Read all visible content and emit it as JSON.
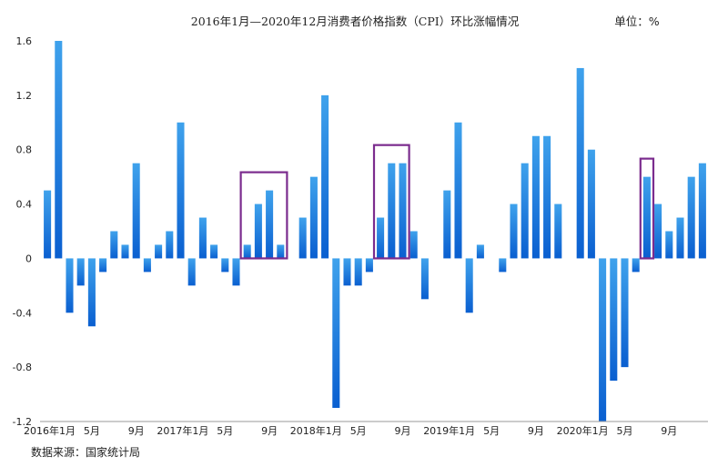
{
  "chart_data": {
    "type": "bar",
    "title": "2016年1月—2020年12月消费者价格指数（CPI）环比涨幅情况",
    "unit": "单位：%",
    "xlabel": "",
    "ylabel": "",
    "ylim": [
      -1.2,
      1.6
    ],
    "yticks": [
      "1.6",
      "1.2",
      "0.8",
      "0.4",
      "0",
      "-0.4",
      "-0.8",
      "-1.2"
    ],
    "categories": [
      "2016-01",
      "2016-02",
      "2016-03",
      "2016-04",
      "2016-05",
      "2016-06",
      "2016-07",
      "2016-08",
      "2016-09",
      "2016-10",
      "2016-11",
      "2016-12",
      "2017-01",
      "2017-02",
      "2017-03",
      "2017-04",
      "2017-05",
      "2017-06",
      "2017-07",
      "2017-08",
      "2017-09",
      "2017-10",
      "2017-11",
      "2017-12",
      "2018-01",
      "2018-02",
      "2018-03",
      "2018-04",
      "2018-05",
      "2018-06",
      "2018-07",
      "2018-08",
      "2018-09",
      "2018-10",
      "2018-11",
      "2018-12",
      "2019-01",
      "2019-02",
      "2019-03",
      "2019-04",
      "2019-05",
      "2019-06",
      "2019-07",
      "2019-08",
      "2019-09",
      "2019-10",
      "2019-11",
      "2019-12",
      "2020-01",
      "2020-02",
      "2020-03",
      "2020-04",
      "2020-05",
      "2020-06",
      "2020-07",
      "2020-08",
      "2020-09",
      "2020-10",
      "2020-11",
      "2020-12"
    ],
    "values": [
      0.5,
      1.6,
      -0.4,
      -0.2,
      -0.5,
      -0.1,
      0.2,
      0.1,
      0.7,
      -0.1,
      0.1,
      0.2,
      1.0,
      -0.2,
      0.3,
      0.1,
      -0.1,
      -0.2,
      0.1,
      0.4,
      0.5,
      0.1,
      0.0,
      0.3,
      0.6,
      1.2,
      -1.1,
      -0.2,
      -0.2,
      -0.1,
      0.3,
      0.7,
      0.7,
      0.2,
      -0.3,
      0.0,
      0.5,
      1.0,
      -0.4,
      0.1,
      0.0,
      -0.1,
      0.4,
      0.7,
      0.9,
      0.9,
      0.4,
      0.0,
      1.4,
      0.8,
      -1.2,
      -0.9,
      -0.8,
      -0.1,
      0.6,
      0.4,
      0.2,
      0.3,
      0.6,
      0.7
    ],
    "xtick_labels": [
      {
        "index": 0,
        "label": "2016年1月"
      },
      {
        "index": 4,
        "label": "5月"
      },
      {
        "index": 8,
        "label": "9月"
      },
      {
        "index": 12,
        "label": "2017年1月"
      },
      {
        "index": 16,
        "label": "5月"
      },
      {
        "index": 20,
        "label": "9月"
      },
      {
        "index": 24,
        "label": "2018年1月"
      },
      {
        "index": 28,
        "label": "5月"
      },
      {
        "index": 32,
        "label": "9月"
      },
      {
        "index": 36,
        "label": "2019年1月"
      },
      {
        "index": 40,
        "label": "5月"
      },
      {
        "index": 44,
        "label": "9月"
      },
      {
        "index": 48,
        "label": "2020年1月"
      },
      {
        "index": 52,
        "label": "5月"
      },
      {
        "index": 56,
        "label": "9月"
      }
    ],
    "highlights": [
      {
        "from_index": 18,
        "to_index": 21,
        "color": "#7b2c8e"
      },
      {
        "from_index": 30,
        "to_index": 32,
        "color": "#7b2c8e"
      },
      {
        "from_index": 54,
        "to_index": 54,
        "color": "#7b2c8e"
      }
    ],
    "bar_color_top": "#3fa2ec",
    "bar_color_bottom": "#0a5fd0",
    "grid": false,
    "legend": "none"
  },
  "source": "数据来源：国家统计局"
}
